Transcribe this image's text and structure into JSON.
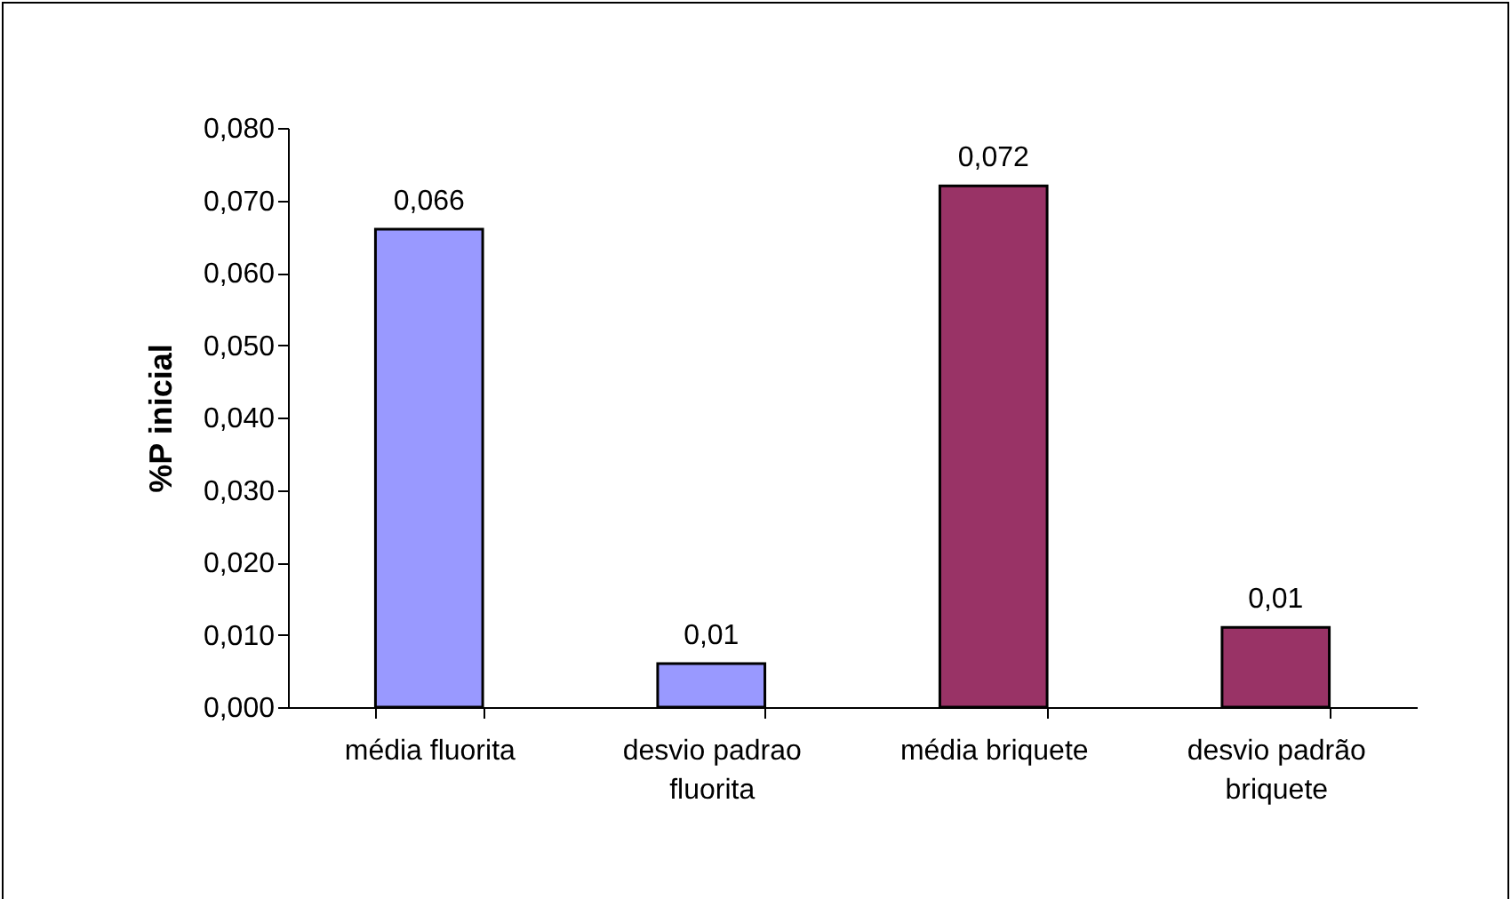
{
  "chart_data": {
    "type": "bar",
    "ylabel": "%P inicial",
    "categories": [
      "média fluorita",
      "desvio padrao fluorita",
      "média briquete",
      "desvio padrão briquete"
    ],
    "values": [
      0.066,
      0.006,
      0.072,
      0.011
    ],
    "colors": [
      "#9999ff",
      "#9999ff",
      "#993366",
      "#993366"
    ],
    "value_labels": [
      "0,066",
      "0,01",
      "0,072",
      "0,01"
    ],
    "ylim": [
      0,
      0.08
    ],
    "yticks": [
      {
        "value": 0,
        "label": "0,000"
      },
      {
        "value": 0.01,
        "label": "0,010"
      },
      {
        "value": 0.02,
        "label": "0,020"
      },
      {
        "value": 0.03,
        "label": "0,030"
      },
      {
        "value": 0.04,
        "label": "0,040"
      },
      {
        "value": 0.05,
        "label": "0,050"
      },
      {
        "value": 0.06,
        "label": "0,060"
      },
      {
        "value": 0.07,
        "label": "0,070"
      },
      {
        "value": 0.08,
        "label": "0,080"
      }
    ],
    "grid": false
  }
}
